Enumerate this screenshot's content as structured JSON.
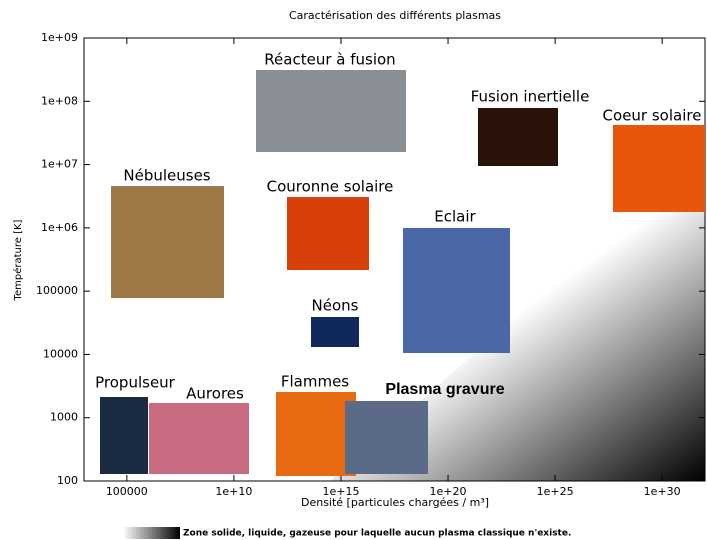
{
  "chart_data": {
    "type": "scatter",
    "title": "Caractérisation des différents plasmas",
    "x_label": "Densité [particules chargées / m³]",
    "y_label": "Température [K]",
    "logx": true,
    "logy": true,
    "grid": false,
    "xlim": [
      1000,
      1e+32
    ],
    "xticks": [
      100000,
      {
        "value": 10000000000.0,
        "label": "1e+10"
      },
      {
        "value": 1000000000000000.0,
        "label": "1e+15"
      },
      {
        "value": 1e+20,
        "label": "1e+20"
      },
      {
        "value": 1e+25,
        "label": "1e+25"
      },
      {
        "value": 1e+30,
        "label": "1e+30"
      }
    ],
    "ylim": [
      100,
      1000000000
    ],
    "yticks": [
      100,
      1000,
      10000,
      100000,
      {
        "value": 1000000,
        "label": "1e+06"
      },
      {
        "value": 10000000,
        "label": "1e+07"
      },
      {
        "value": 100000000,
        "label": "1e+08"
      },
      {
        "value": 1000000000,
        "label": "1e+09"
      }
    ],
    "annotations": [
      "Réacteur à fusion",
      "Fusion inertielle",
      "Coeur solaire",
      "Nébuleuses",
      "Couronne solaire",
      "Eclair",
      "Néons",
      "Propulseur",
      "Aurores",
      "Flammes",
      "Plasma gravure"
    ],
    "legend": "Zone solide, liquide, gazeuse pour laquelle aucun plasma classique n'existe."
  }
}
